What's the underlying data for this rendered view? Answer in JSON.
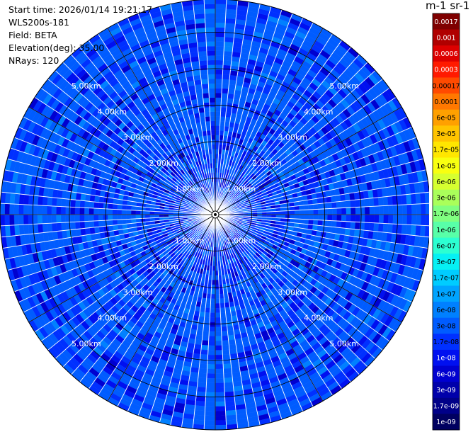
{
  "info": {
    "start_time": "Start time: 2026/01/14 19:21:17",
    "instrument": "WLS200s-181",
    "field": "Field: BETA",
    "elevation": "Elevation(deg): 35.00",
    "nrays": "NRays: 120"
  },
  "chart_data": {
    "type": "heatmap",
    "projection": "polar-ppi",
    "field": "BETA",
    "elevation_deg": 35.0,
    "n_rays": 120,
    "range_ring_labels": [
      "1.00km",
      "2.00km",
      "3.00km",
      "4.00km",
      "5.00km"
    ],
    "range_rings_km": [
      1,
      2,
      3,
      4,
      5
    ],
    "max_range_km": 5.9,
    "azimuth_step_deg": 3,
    "typical_value": "3e-08",
    "colorbar": {
      "title": "m-1 sr-1",
      "levels": [
        "0.0017",
        "0.001",
        "0.0006",
        "0.0003",
        "0.00017",
        "0.0001",
        "6e-05",
        "3e-05",
        "1.7e-05",
        "1e-05",
        "6e-06",
        "3e-06",
        "1.7e-06",
        "1e-06",
        "6e-07",
        "3e-07",
        "1.7e-07",
        "1e-07",
        "6e-08",
        "3e-08",
        "1.7e-08",
        "1e-08",
        "6e-09",
        "3e-09",
        "1.7e-09",
        "1e-09"
      ],
      "colors": [
        "#7f0000",
        "#b00000",
        "#dd0000",
        "#ff1a00",
        "#ff4a00",
        "#ff7800",
        "#ffa000",
        "#ffc400",
        "#ffe600",
        "#f8ff10",
        "#d6ff30",
        "#aaff5a",
        "#80ff80",
        "#58ffa8",
        "#2cffd2",
        "#06f0f4",
        "#00ccff",
        "#00a4ff",
        "#0080ff",
        "#005cff",
        "#0030ff",
        "#0010f0",
        "#0000d0",
        "#0000aa",
        "#000088",
        "#000060"
      ],
      "label_colors": [
        "#ffffff",
        "#ffffff",
        "#ffffff",
        "#ffffff",
        "#000000",
        "#000000",
        "#000000",
        "#000000",
        "#000000",
        "#000000",
        "#000000",
        "#000000",
        "#000000",
        "#000000",
        "#000000",
        "#000000",
        "#000000",
        "#000000",
        "#000000",
        "#000000",
        "#000000",
        "#ffffff",
        "#ffffff",
        "#ffffff",
        "#ffffff",
        "#ffffff"
      ]
    }
  }
}
